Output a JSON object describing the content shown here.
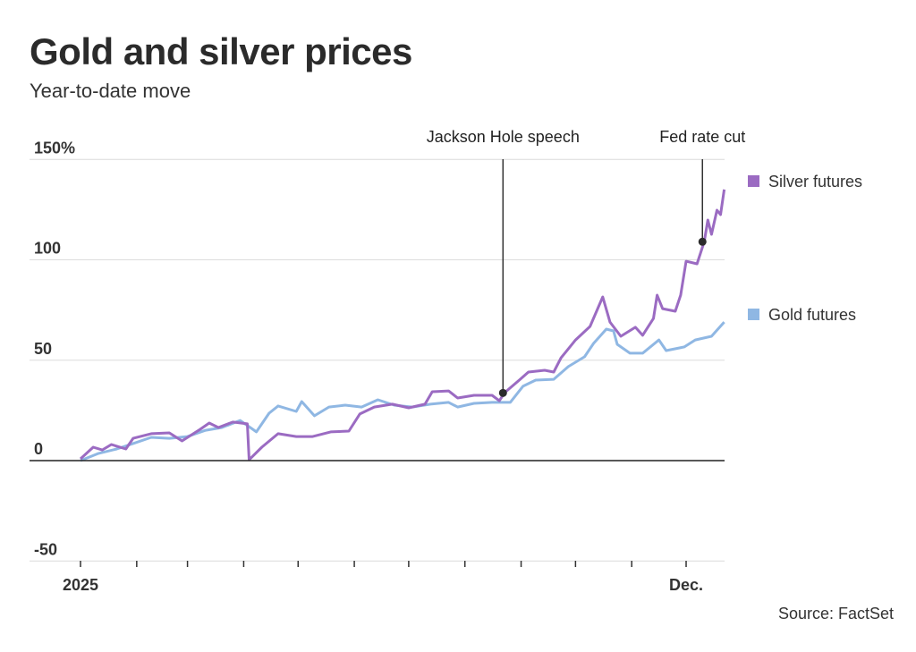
{
  "header": {
    "title": "Gold and silver prices",
    "subtitle": "Year-to-date move"
  },
  "footer": {
    "source": "Source: FactSet"
  },
  "chart_data": {
    "type": "line",
    "title": "Gold and silver prices",
    "subtitle": "Year-to-date move",
    "ylim": [
      -50,
      150
    ],
    "yticks": [
      -50,
      0,
      50,
      100,
      150
    ],
    "ytick_labels": [
      "-50",
      "0",
      "50",
      "100",
      "150%"
    ],
    "xlim": [
      "2025-01-01",
      "2025-12-22"
    ],
    "xtick_labels": [
      {
        "date": "2025-01-01",
        "label": "2025"
      },
      {
        "date": "2025-12-01",
        "label": "Dec."
      }
    ],
    "month_ticks": [
      "2025-01-01",
      "2025-02-01",
      "2025-03-01",
      "2025-04-01",
      "2025-05-01",
      "2025-06-01",
      "2025-07-01",
      "2025-08-01",
      "2025-09-01",
      "2025-10-01",
      "2025-11-01",
      "2025-12-01"
    ],
    "grid": true,
    "legend_placement": "right",
    "annotations": [
      {
        "label": "Jackson Hole speech",
        "date": "2025-08-22",
        "value": 33.7
      },
      {
        "label": "Fed rate cut",
        "date": "2025-12-10",
        "value": 109
      }
    ],
    "series": [
      {
        "name": "Silver futures",
        "color": "#9b6bc2",
        "points": [
          [
            "2025-01-01",
            0.9
          ],
          [
            "2025-01-08",
            6.7
          ],
          [
            "2025-01-13",
            5.3
          ],
          [
            "2025-01-18",
            8.0
          ],
          [
            "2025-01-26",
            5.8
          ],
          [
            "2025-01-30",
            11.1
          ],
          [
            "2025-02-09",
            13.4
          ],
          [
            "2025-02-19",
            13.8
          ],
          [
            "2025-02-26",
            9.8
          ],
          [
            "2025-03-08",
            15.6
          ],
          [
            "2025-03-13",
            18.7
          ],
          [
            "2025-03-18",
            16.5
          ],
          [
            "2025-03-26",
            19.2
          ],
          [
            "2025-04-03",
            18.3
          ],
          [
            "2025-04-04",
            0.4
          ],
          [
            "2025-04-11",
            6.7
          ],
          [
            "2025-04-20",
            13.4
          ],
          [
            "2025-04-30",
            12.0
          ],
          [
            "2025-05-09",
            12.0
          ],
          [
            "2025-05-19",
            14.3
          ],
          [
            "2025-05-29",
            14.7
          ],
          [
            "2025-06-04",
            23.2
          ],
          [
            "2025-06-12",
            26.7
          ],
          [
            "2025-06-22",
            28.1
          ],
          [
            "2025-07-01",
            26.3
          ],
          [
            "2025-07-10",
            28.1
          ],
          [
            "2025-07-14",
            34.3
          ],
          [
            "2025-07-23",
            34.7
          ],
          [
            "2025-07-28",
            31.2
          ],
          [
            "2025-08-06",
            32.5
          ],
          [
            "2025-08-16",
            32.5
          ],
          [
            "2025-08-20",
            29.8
          ],
          [
            "2025-08-23",
            33.9
          ],
          [
            "2025-08-31",
            40.1
          ],
          [
            "2025-09-05",
            44.1
          ],
          [
            "2025-09-14",
            45.0
          ],
          [
            "2025-09-19",
            44.1
          ],
          [
            "2025-09-23",
            51.2
          ],
          [
            "2025-10-01",
            60.1
          ],
          [
            "2025-10-09",
            66.8
          ],
          [
            "2025-10-16",
            81.5
          ],
          [
            "2025-10-20",
            69.0
          ],
          [
            "2025-10-26",
            61.9
          ],
          [
            "2025-11-03",
            66.4
          ],
          [
            "2025-11-07",
            62.4
          ],
          [
            "2025-11-13",
            70.8
          ],
          [
            "2025-11-15",
            82.4
          ],
          [
            "2025-11-18",
            75.7
          ],
          [
            "2025-11-25",
            74.4
          ],
          [
            "2025-11-28",
            82.4
          ],
          [
            "2025-12-01",
            99.3
          ],
          [
            "2025-12-07",
            98.0
          ],
          [
            "2025-12-11",
            109.1
          ],
          [
            "2025-12-13",
            119.8
          ],
          [
            "2025-12-15",
            112.7
          ],
          [
            "2025-12-18",
            124.7
          ],
          [
            "2025-12-20",
            122.5
          ],
          [
            "2025-12-22",
            135.0
          ]
        ]
      },
      {
        "name": "Gold futures",
        "color": "#8fb7e3",
        "points": [
          [
            "2025-01-01",
            0
          ],
          [
            "2025-01-11",
            3.6
          ],
          [
            "2025-01-21",
            5.8
          ],
          [
            "2025-01-30",
            8.5
          ],
          [
            "2025-02-09",
            11.6
          ],
          [
            "2025-02-19",
            11.1
          ],
          [
            "2025-03-01",
            12.0
          ],
          [
            "2025-03-11",
            15.1
          ],
          [
            "2025-03-20",
            16.5
          ],
          [
            "2025-03-30",
            20.0
          ],
          [
            "2025-04-06",
            15.6
          ],
          [
            "2025-04-08",
            14.3
          ],
          [
            "2025-04-15",
            23.6
          ],
          [
            "2025-04-20",
            27.2
          ],
          [
            "2025-04-30",
            24.5
          ],
          [
            "2025-05-03",
            29.4
          ],
          [
            "2025-05-10",
            22.3
          ],
          [
            "2025-05-18",
            26.7
          ],
          [
            "2025-05-27",
            27.6
          ],
          [
            "2025-06-05",
            26.7
          ],
          [
            "2025-06-14",
            30.3
          ],
          [
            "2025-06-23",
            27.6
          ],
          [
            "2025-07-03",
            26.7
          ],
          [
            "2025-07-13",
            28.1
          ],
          [
            "2025-07-23",
            29.0
          ],
          [
            "2025-07-28",
            26.7
          ],
          [
            "2025-08-06",
            28.5
          ],
          [
            "2025-08-16",
            29.0
          ],
          [
            "2025-08-26",
            29.0
          ],
          [
            "2025-09-02",
            37.0
          ],
          [
            "2025-09-09",
            40.1
          ],
          [
            "2025-09-19",
            40.5
          ],
          [
            "2025-09-27",
            46.8
          ],
          [
            "2025-10-06",
            51.7
          ],
          [
            "2025-10-11",
            58.4
          ],
          [
            "2025-10-18",
            65.5
          ],
          [
            "2025-10-22",
            64.6
          ],
          [
            "2025-10-24",
            57.9
          ],
          [
            "2025-10-31",
            53.5
          ],
          [
            "2025-11-07",
            53.5
          ],
          [
            "2025-11-16",
            60.1
          ],
          [
            "2025-11-20",
            54.8
          ],
          [
            "2025-11-30",
            56.6
          ],
          [
            "2025-12-06",
            60.1
          ],
          [
            "2025-12-15",
            61.9
          ],
          [
            "2025-12-22",
            69.0
          ]
        ]
      }
    ]
  }
}
